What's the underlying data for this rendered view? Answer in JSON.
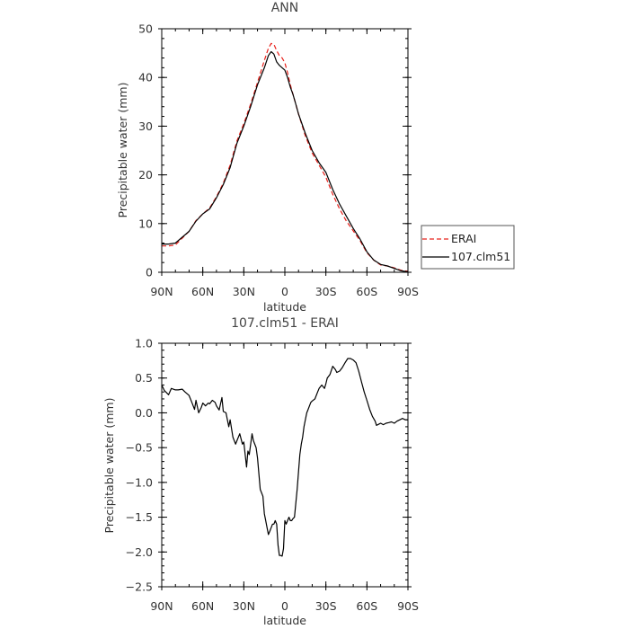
{
  "chart_data": [
    {
      "type": "line",
      "title": "ANN",
      "xlabel": "latitude",
      "ylabel": "Precipitable water (mm)",
      "xlim": [
        90,
        -90
      ],
      "ylim": [
        0,
        50
      ],
      "x_tick_values": [
        90,
        60,
        30,
        0,
        -30,
        -60,
        -90
      ],
      "x_tick_labels": [
        "90N",
        "60N",
        "30N",
        "0",
        "30S",
        "60S",
        "90S"
      ],
      "y_tick_values": [
        0,
        10,
        20,
        30,
        40,
        50
      ],
      "y_tick_labels": [
        "0",
        "10",
        "20",
        "30",
        "40",
        "50"
      ],
      "legend_position": "outside-right",
      "series": [
        {
          "name": "ERAI",
          "color": "#e8201a",
          "dash": "dashed",
          "x": [
            90,
            85,
            80,
            75,
            70,
            65,
            60,
            55,
            50,
            45,
            40,
            35,
            30,
            25,
            20,
            15,
            12,
            10,
            8,
            6,
            4,
            2,
            0,
            -2,
            -4,
            -6,
            -8,
            -10,
            -15,
            -20,
            -25,
            -30,
            -35,
            -40,
            -45,
            -50,
            -55,
            -60,
            -65,
            -70,
            -75,
            -80,
            -85,
            -90
          ],
          "values": [
            5.4,
            5.4,
            5.6,
            7.0,
            8.4,
            10.6,
            12.0,
            13.2,
            15.5,
            18.3,
            22.0,
            27.0,
            30.5,
            34.5,
            39.0,
            43.5,
            46.0,
            47.0,
            46.8,
            45.5,
            44.5,
            44.0,
            43.0,
            41.0,
            38.5,
            36.5,
            34.5,
            32.5,
            28.0,
            24.5,
            22.0,
            19.5,
            16.0,
            13.0,
            10.5,
            8.5,
            6.5,
            4.0,
            2.5,
            1.5,
            1.3,
            0.9,
            0.4,
            0.2
          ]
        },
        {
          "name": "107.clm51",
          "color": "#000000",
          "dash": "solid",
          "x": [
            90,
            85,
            80,
            75,
            70,
            65,
            60,
            55,
            50,
            45,
            40,
            35,
            30,
            25,
            20,
            15,
            12,
            10,
            8,
            6,
            4,
            2,
            0,
            -2,
            -4,
            -6,
            -8,
            -10,
            -15,
            -20,
            -25,
            -30,
            -35,
            -40,
            -45,
            -50,
            -55,
            -60,
            -65,
            -70,
            -75,
            -80,
            -85,
            -90
          ],
          "values": [
            5.8,
            5.8,
            6.0,
            7.2,
            8.4,
            10.5,
            12.0,
            13.0,
            15.3,
            18.0,
            21.5,
            26.5,
            30.0,
            34.0,
            38.5,
            42.0,
            44.5,
            45.3,
            44.8,
            43.2,
            42.5,
            42.0,
            41.5,
            40.0,
            38.0,
            36.5,
            34.5,
            32.5,
            28.5,
            25.0,
            22.5,
            20.5,
            17.0,
            14.0,
            11.5,
            9.0,
            6.8,
            4.2,
            2.5,
            1.6,
            1.3,
            0.8,
            0.3,
            0.1
          ]
        }
      ]
    },
    {
      "type": "line",
      "title": "107.clm51 - ERAI",
      "xlabel": "latitude",
      "ylabel": "Precipitable water (mm)",
      "xlim": [
        90,
        -90
      ],
      "ylim": [
        -2.5,
        1.0
      ],
      "x_tick_values": [
        90,
        60,
        30,
        0,
        -30,
        -60,
        -90
      ],
      "x_tick_labels": [
        "90N",
        "60N",
        "30N",
        "0",
        "30S",
        "60S",
        "90S"
      ],
      "y_tick_values": [
        -2.5,
        -2.0,
        -1.5,
        -1.0,
        -0.5,
        0.0,
        0.5,
        1.0
      ],
      "y_tick_labels": [
        "−2.5",
        "−2.0",
        "−1.5",
        "−1.0",
        "−0.5",
        "0.0",
        "0.5",
        "1.0"
      ],
      "series": [
        {
          "name": "",
          "color": "#000000",
          "dash": "solid",
          "x": [
            90,
            88,
            85,
            83,
            80,
            78,
            75,
            73,
            70,
            68,
            66,
            65,
            63,
            61,
            60,
            58,
            56,
            55,
            53,
            51,
            50,
            48,
            46,
            45,
            43,
            41,
            40,
            38,
            36,
            35,
            33,
            31,
            30,
            28,
            27,
            26,
            24,
            23,
            21,
            20,
            18,
            16,
            15,
            14,
            13,
            12,
            11,
            10,
            9,
            8,
            7,
            6,
            5,
            4,
            3,
            2,
            1,
            0,
            -1,
            -2,
            -3,
            -4,
            -5,
            -6,
            -7,
            -8,
            -9,
            -10,
            -11,
            -12,
            -13,
            -14,
            -15,
            -16,
            -17,
            -18,
            -19,
            -20,
            -22,
            -24,
            -25,
            -27,
            -29,
            -30,
            -31,
            -33,
            -35,
            -37,
            -38,
            -40,
            -42,
            -44,
            -46,
            -48,
            -50,
            -52,
            -54,
            -56,
            -58,
            -60,
            -62,
            -64,
            -66,
            -67,
            -69,
            -70,
            -72,
            -74,
            -76,
            -78,
            -80,
            -82,
            -84,
            -86,
            -88,
            -90
          ],
          "values": [
            0.4,
            0.32,
            0.26,
            0.35,
            0.33,
            0.33,
            0.34,
            0.3,
            0.25,
            0.15,
            0.05,
            0.18,
            0.0,
            0.08,
            0.14,
            0.1,
            0.14,
            0.13,
            0.18,
            0.15,
            0.1,
            0.04,
            0.22,
            0.02,
            0.0,
            -0.2,
            -0.1,
            -0.35,
            -0.45,
            -0.4,
            -0.3,
            -0.45,
            -0.42,
            -0.78,
            -0.55,
            -0.6,
            -0.3,
            -0.4,
            -0.5,
            -0.65,
            -1.1,
            -1.2,
            -1.45,
            -1.55,
            -1.65,
            -1.75,
            -1.7,
            -1.65,
            -1.6,
            -1.6,
            -1.55,
            -1.6,
            -1.9,
            -2.05,
            -2.05,
            -2.06,
            -1.95,
            -1.55,
            -1.6,
            -1.55,
            -1.5,
            -1.55,
            -1.55,
            -1.52,
            -1.5,
            -1.3,
            -1.1,
            -0.85,
            -0.6,
            -0.45,
            -0.35,
            -0.2,
            -0.1,
            0.0,
            0.05,
            0.1,
            0.15,
            0.17,
            0.2,
            0.3,
            0.35,
            0.4,
            0.35,
            0.42,
            0.5,
            0.55,
            0.67,
            0.62,
            0.58,
            0.6,
            0.65,
            0.72,
            0.78,
            0.78,
            0.76,
            0.72,
            0.6,
            0.45,
            0.3,
            0.18,
            0.05,
            -0.05,
            -0.12,
            -0.18,
            -0.16,
            -0.15,
            -0.17,
            -0.15,
            -0.14,
            -0.13,
            -0.15,
            -0.12,
            -0.1,
            -0.08,
            -0.1,
            -0.1
          ]
        }
      ]
    }
  ]
}
